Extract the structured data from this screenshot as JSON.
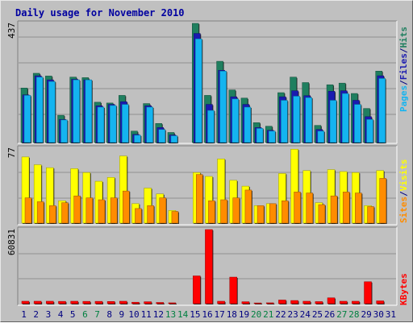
{
  "title": "Daily usage for November 2010",
  "colors": {
    "hits": "#1f7f5f",
    "files": "#1a1ab0",
    "pages": "#14b4f0",
    "visits": "#ffff00",
    "sites": "#ff8c00",
    "kbytes": "#ff0000",
    "weekend_day": "#008040",
    "weekday": "#000080",
    "panel_bg": "#c0c0c0"
  },
  "right_labels": {
    "top": [
      "Pages",
      "/",
      "Files",
      "/",
      "Hits"
    ],
    "middle": [
      "Sites",
      "/",
      "Visits"
    ],
    "bottom": [
      "KBytes"
    ]
  },
  "chart_data": [
    {
      "type": "bar",
      "name": "hits_files_pages",
      "ymax_label": "437",
      "ylim": [
        0,
        437
      ],
      "categories": [
        "1",
        "2",
        "3",
        "4",
        "5",
        "6",
        "7",
        "8",
        "9",
        "10",
        "11",
        "12",
        "13",
        "14",
        "15",
        "16",
        "17",
        "18",
        "19",
        "20",
        "21",
        "22",
        "23",
        "24",
        "25",
        "26",
        "27",
        "28",
        "29",
        "30",
        "31"
      ],
      "weekend_days": [
        6,
        7,
        13,
        14,
        20,
        21,
        27,
        28
      ],
      "series": [
        {
          "name": "Hits",
          "values": [
            200,
            254,
            244,
            100,
            240,
            238,
            148,
            145,
            173,
            42,
            143,
            70,
            37,
            0,
            437,
            173,
            298,
            193,
            163,
            73,
            60,
            183,
            240,
            220,
            63,
            212,
            218,
            180,
            125,
            262,
            0
          ]
        },
        {
          "name": "Files",
          "values": [
            175,
            245,
            230,
            85,
            232,
            230,
            135,
            140,
            150,
            30,
            135,
            55,
            28,
            0,
            400,
            140,
            265,
            168,
            140,
            55,
            45,
            168,
            190,
            172,
            48,
            188,
            190,
            155,
            95,
            245,
            0
          ]
        },
        {
          "name": "Pages",
          "values": [
            173,
            240,
            224,
            83,
            230,
            230,
            130,
            136,
            140,
            27,
            130,
            48,
            25,
            0,
            380,
            118,
            262,
            160,
            130,
            52,
            42,
            155,
            170,
            165,
            42,
            155,
            180,
            140,
            85,
            235,
            0
          ]
        }
      ]
    },
    {
      "type": "bar",
      "name": "visits_sites",
      "ymax_label": "77",
      "ylim": [
        0,
        77
      ],
      "categories": [
        "1",
        "2",
        "3",
        "4",
        "5",
        "6",
        "7",
        "8",
        "9",
        "10",
        "11",
        "12",
        "13",
        "14",
        "15",
        "16",
        "17",
        "18",
        "19",
        "20",
        "21",
        "22",
        "23",
        "24",
        "25",
        "26",
        "27",
        "28",
        "29",
        "30",
        "31"
      ],
      "series": [
        {
          "name": "Visits",
          "values": [
            68,
            60,
            57,
            23,
            56,
            52,
            43,
            47,
            69,
            20,
            36,
            30,
            13,
            0,
            52,
            48,
            66,
            44,
            38,
            18,
            20,
            51,
            76,
            54,
            21,
            55,
            53,
            52,
            18,
            54,
            0
          ]
        },
        {
          "name": "Sites",
          "values": [
            26,
            22,
            18,
            21,
            28,
            26,
            24,
            26,
            33,
            15,
            18,
            26,
            12,
            0,
            50,
            23,
            24,
            26,
            34,
            18,
            20,
            23,
            32,
            31,
            19,
            28,
            32,
            31,
            17,
            46,
            0
          ]
        }
      ]
    },
    {
      "type": "bar",
      "name": "kbytes",
      "ymax_label": "60831",
      "ylim": [
        0,
        60831
      ],
      "categories": [
        "1",
        "2",
        "3",
        "4",
        "5",
        "6",
        "7",
        "8",
        "9",
        "10",
        "11",
        "12",
        "13",
        "14",
        "15",
        "16",
        "17",
        "18",
        "19",
        "20",
        "21",
        "22",
        "23",
        "24",
        "25",
        "26",
        "27",
        "28",
        "29",
        "30",
        "31"
      ],
      "series": [
        {
          "name": "KBytes",
          "values": [
            2000,
            2000,
            2000,
            1900,
            2000,
            1900,
            1900,
            1800,
            2000,
            1200,
            1600,
            1000,
            700,
            0,
            22800,
            60831,
            2000,
            21800,
            1600,
            600,
            700,
            3000,
            2600,
            2000,
            1700,
            4800,
            2000,
            2000,
            18000,
            2300,
            0
          ]
        }
      ]
    }
  ]
}
